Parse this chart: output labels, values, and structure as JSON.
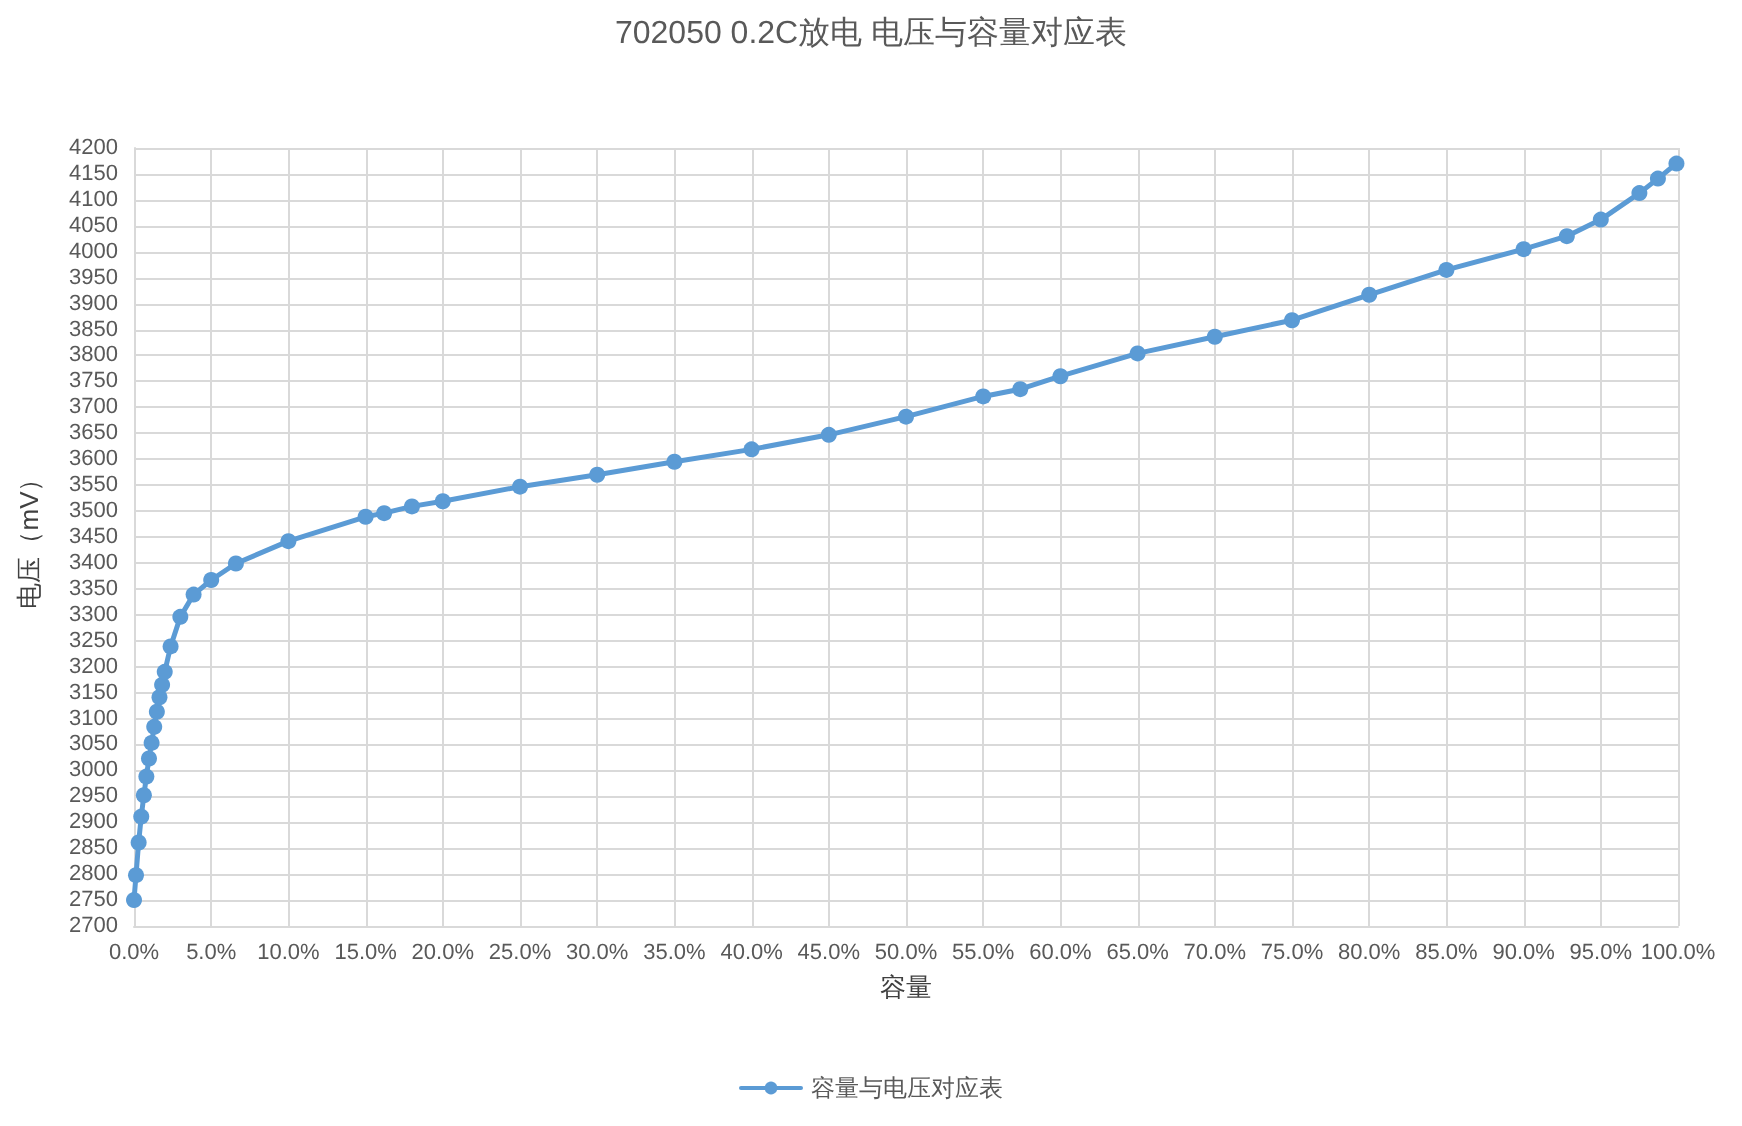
{
  "chart_data": {
    "type": "line",
    "title": "702050 0.2C放电 电压与容量对应表",
    "xlabel": "容量",
    "ylabel": "电压（mV）",
    "series": [
      {
        "name": "容量与电压对应表",
        "color": "#5b9bd5",
        "x": [
          0,
          0.13,
          0.3,
          0.47,
          0.64,
          0.8,
          0.97,
          1.14,
          1.31,
          1.48,
          1.65,
          1.82,
          1.99,
          2.37,
          3.0,
          3.86,
          5.0,
          6.6,
          10.0,
          15.0,
          16.2,
          18.0,
          20.0,
          25.0,
          30.0,
          35.0,
          40.0,
          45.0,
          50.0,
          55.0,
          57.4,
          60.0,
          65.0,
          70.0,
          75.0,
          80.0,
          85.0,
          90.0,
          92.8,
          95.0,
          97.5,
          98.7,
          99.9
        ],
        "values": [
          2750,
          2798,
          2861,
          2911,
          2952,
          2988,
          3023,
          3053,
          3084,
          3113,
          3141,
          3165,
          3190,
          3239,
          3296,
          3339,
          3367,
          3399,
          3442,
          3489,
          3496,
          3509,
          3519,
          3547,
          3570,
          3595,
          3619,
          3647,
          3682,
          3721,
          3735,
          3760,
          3804,
          3836,
          3868,
          3917,
          3965,
          4005,
          4030,
          4062,
          4113,
          4141,
          4170
        ]
      }
    ],
    "xlim": [
      0,
      100
    ],
    "xticks": [
      {
        "value": 0,
        "label": "0.0%"
      },
      {
        "value": 5,
        "label": "5.0%"
      },
      {
        "value": 10,
        "label": "10.0%"
      },
      {
        "value": 15,
        "label": "15.0%"
      },
      {
        "value": 20,
        "label": "20.0%"
      },
      {
        "value": 25,
        "label": "25.0%"
      },
      {
        "value": 30,
        "label": "30.0%"
      },
      {
        "value": 35,
        "label": "35.0%"
      },
      {
        "value": 40,
        "label": "40.0%"
      },
      {
        "value": 45,
        "label": "45.0%"
      },
      {
        "value": 50,
        "label": "50.0%"
      },
      {
        "value": 55,
        "label": "55.0%"
      },
      {
        "value": 60,
        "label": "60.0%"
      },
      {
        "value": 65,
        "label": "65.0%"
      },
      {
        "value": 70,
        "label": "70.0%"
      },
      {
        "value": 75,
        "label": "75.0%"
      },
      {
        "value": 80,
        "label": "80.0%"
      },
      {
        "value": 85,
        "label": "85.0%"
      },
      {
        "value": 90,
        "label": "90.0%"
      },
      {
        "value": 95,
        "label": "95.0%"
      },
      {
        "value": 100,
        "label": "100.0%"
      }
    ],
    "ylim": [
      2700,
      4200
    ],
    "yticks": [
      2700,
      2750,
      2800,
      2850,
      2900,
      2950,
      3000,
      3050,
      3100,
      3150,
      3200,
      3250,
      3300,
      3350,
      3400,
      3450,
      3500,
      3550,
      3600,
      3650,
      3700,
      3750,
      3800,
      3850,
      3900,
      3950,
      4000,
      4050,
      4100,
      4150,
      4200
    ],
    "grid": true,
    "legend": "bottom",
    "marker": "circle",
    "line_style": "solid"
  }
}
